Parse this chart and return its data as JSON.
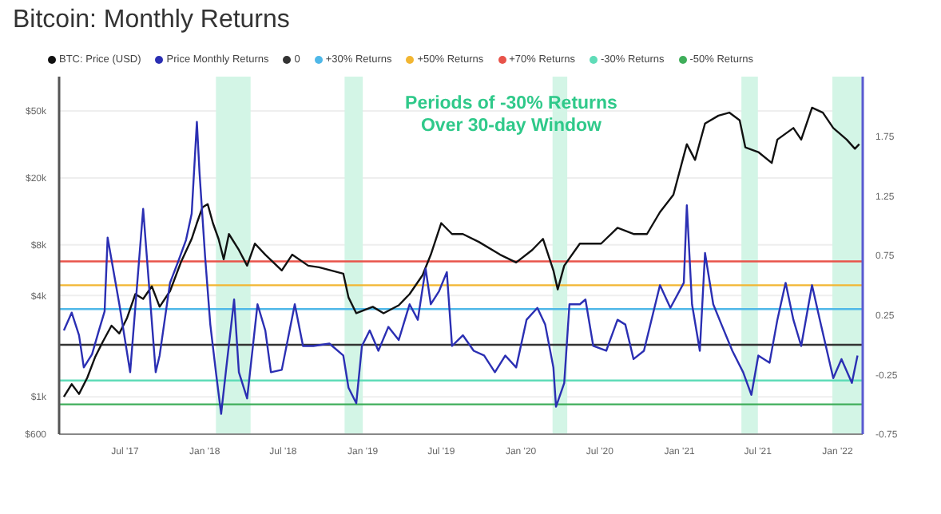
{
  "chart_data": {
    "type": "line",
    "title": "Bitcoin: Monthly Returns",
    "annotations": [
      "Periods of -30% Returns Over 30-day Window"
    ],
    "xlim": [
      "2017-01-30",
      "2022-02-28"
    ],
    "xticks": [
      {
        "value": "2017-07-01",
        "label": "Jul '17"
      },
      {
        "value": "2018-01-01",
        "label": "Jan '18"
      },
      {
        "value": "2018-07-01",
        "label": "Jul '18"
      },
      {
        "value": "2019-01-01",
        "label": "Jan '19"
      },
      {
        "value": "2019-07-01",
        "label": "Jul '19"
      },
      {
        "value": "2020-01-01",
        "label": "Jan '20"
      },
      {
        "value": "2020-07-01",
        "label": "Jul '20"
      },
      {
        "value": "2021-01-01",
        "label": "Jan '21"
      },
      {
        "value": "2021-07-01",
        "label": "Jul '21"
      },
      {
        "value": "2022-01-01",
        "label": "Jan '22"
      }
    ],
    "ylim": [
      600,
      80000
    ],
    "yticks": [
      {
        "value": 600,
        "label": "$600"
      },
      {
        "value": 1000,
        "label": "$1k"
      },
      {
        "value": 4000,
        "label": "$4k"
      },
      {
        "value": 8000,
        "label": "$8k"
      },
      {
        "value": 20000,
        "label": "$20k"
      },
      {
        "value": 50000,
        "label": "$50k"
      }
    ],
    "y2lim": [
      -0.75,
      2.25
    ],
    "y2ticks": [
      -0.75,
      -0.25,
      0.25,
      0.75,
      1.25,
      1.75
    ],
    "log": "y",
    "grid": "y",
    "legend": "top",
    "marker": "none",
    "line_style": "solid",
    "series": [
      {
        "name": "BTC: Price (USD)",
        "color": "#111111",
        "x": [
          "2017-02-10",
          "2017-02-28",
          "2017-03-17",
          "2017-04-05",
          "2017-04-23",
          "2017-05-11",
          "2017-05-31",
          "2017-06-18",
          "2017-07-06",
          "2017-07-25",
          "2017-08-12",
          "2017-09-01",
          "2017-09-19",
          "2017-10-13",
          "2017-11-07",
          "2017-12-02",
          "2017-12-14",
          "2017-12-27",
          "2018-01-08",
          "2018-01-20",
          "2018-02-02",
          "2018-02-14",
          "2018-02-26",
          "2018-03-21",
          "2018-04-09",
          "2018-04-27",
          "2018-05-21",
          "2018-06-28",
          "2018-07-22",
          "2018-08-28",
          "2018-09-22",
          "2018-11-17",
          "2018-11-29",
          "2018-12-17",
          "2019-01-24",
          "2019-02-18",
          "2019-03-25",
          "2019-04-19",
          "2019-05-19",
          "2019-06-07",
          "2019-07-01",
          "2019-07-26",
          "2019-08-20",
          "2019-09-26",
          "2019-11-14",
          "2019-12-21",
          "2020-01-27",
          "2020-02-21",
          "2020-03-16",
          "2020-03-26",
          "2020-04-10",
          "2020-05-16",
          "2020-07-04",
          "2020-08-11",
          "2020-09-17",
          "2020-10-18",
          "2020-11-17",
          "2020-12-18",
          "2021-01-18",
          "2021-02-06",
          "2021-03-01",
          "2021-04-01",
          "2021-04-26",
          "2021-05-20",
          "2021-06-02",
          "2021-07-02",
          "2021-08-02",
          "2021-08-15",
          "2021-09-21",
          "2021-10-09",
          "2021-11-03",
          "2021-11-28",
          "2021-12-22",
          "2022-01-22",
          "2022-02-10",
          "2022-02-20"
        ],
        "values": [
          1000,
          1190,
          1040,
          1300,
          1720,
          2130,
          2650,
          2380,
          2950,
          4080,
          3820,
          4540,
          3430,
          4250,
          6290,
          8690,
          10780,
          13380,
          13970,
          10780,
          8690,
          6570,
          9280,
          7460,
          6020,
          8140,
          7000,
          5640,
          7000,
          6020,
          5890,
          5400,
          3900,
          3140,
          3430,
          3140,
          3500,
          4080,
          5290,
          7000,
          10780,
          9280,
          9280,
          8330,
          7000,
          6290,
          7460,
          8690,
          5640,
          4350,
          6020,
          8140,
          8140,
          10100,
          9280,
          9280,
          12530,
          15880,
          31750,
          25600,
          42100,
          46900,
          48900,
          44000,
          30400,
          28500,
          24550,
          33800,
          39600,
          33800,
          52300,
          48900,
          39600,
          33800,
          29800,
          31750
        ]
      },
      {
        "name": "Price Monthly Returns",
        "color": "#2b2fb3",
        "axis": "y2",
        "x": [
          "2017-02-10",
          "2017-02-28",
          "2017-03-17",
          "2017-03-28",
          "2017-04-16",
          "2017-05-01",
          "2017-05-15",
          "2017-05-22",
          "2017-06-18",
          "2017-07-13",
          "2017-08-12",
          "2017-09-10",
          "2017-09-19",
          "2017-10-13",
          "2017-11-01",
          "2017-11-19",
          "2017-12-02",
          "2017-12-14",
          "2017-12-20",
          "2018-01-02",
          "2018-01-14",
          "2018-01-27",
          "2018-02-08",
          "2018-02-20",
          "2018-03-10",
          "2018-03-21",
          "2018-04-09",
          "2018-05-03",
          "2018-05-21",
          "2018-06-03",
          "2018-06-28",
          "2018-07-28",
          "2018-08-16",
          "2018-09-09",
          "2018-10-16",
          "2018-11-17",
          "2018-11-29",
          "2018-12-17",
          "2018-12-30",
          "2019-01-17",
          "2019-02-06",
          "2019-03-01",
          "2019-03-25",
          "2019-04-19",
          "2019-05-08",
          "2019-05-26",
          "2019-06-07",
          "2019-06-26",
          "2019-07-14",
          "2019-07-26",
          "2019-08-20",
          "2019-09-14",
          "2019-10-08",
          "2019-11-02",
          "2019-11-26",
          "2019-12-21",
          "2020-01-14",
          "2020-02-08",
          "2020-02-26",
          "2020-03-16",
          "2020-03-22",
          "2020-04-10",
          "2020-04-22",
          "2020-05-16",
          "2020-05-29",
          "2020-06-16",
          "2020-07-16",
          "2020-08-11",
          "2020-08-29",
          "2020-09-17",
          "2020-10-11",
          "2020-11-17",
          "2020-12-11",
          "2021-01-11",
          "2021-01-18",
          "2021-01-30",
          "2021-02-17",
          "2021-03-01",
          "2021-03-20",
          "2021-04-08",
          "2021-05-03",
          "2021-05-28",
          "2021-06-16",
          "2021-07-02",
          "2021-07-28",
          "2021-08-15",
          "2021-09-03",
          "2021-09-21",
          "2021-10-09",
          "2021-11-03",
          "2021-11-21",
          "2021-12-10",
          "2021-12-22",
          "2022-01-10",
          "2022-02-03",
          "2022-02-16"
        ],
        "values": [
          0.12,
          0.27,
          0.08,
          -0.19,
          -0.08,
          0.11,
          0.28,
          0.9,
          0.34,
          -0.23,
          1.14,
          -0.23,
          -0.09,
          0.52,
          0.7,
          0.88,
          1.1,
          1.87,
          1.45,
          0.74,
          0.17,
          -0.23,
          -0.58,
          -0.19,
          0.38,
          -0.23,
          -0.45,
          0.34,
          0.12,
          -0.23,
          -0.21,
          0.34,
          -0.01,
          -0.01,
          0.01,
          -0.09,
          -0.36,
          -0.49,
          -0.01,
          0.12,
          -0.05,
          0.15,
          0.04,
          0.34,
          0.21,
          0.64,
          0.34,
          0.45,
          0.61,
          -0.01,
          0.08,
          -0.05,
          -0.09,
          -0.23,
          -0.09,
          -0.19,
          0.21,
          0.31,
          0.17,
          -0.19,
          -0.52,
          -0.32,
          0.34,
          0.34,
          0.38,
          -0.01,
          -0.05,
          0.21,
          0.17,
          -0.12,
          -0.05,
          0.5,
          0.31,
          0.52,
          1.17,
          0.34,
          -0.05,
          0.77,
          0.34,
          0.17,
          -0.05,
          -0.23,
          -0.42,
          -0.09,
          -0.15,
          0.21,
          0.52,
          0.21,
          -0.01,
          0.5,
          0.21,
          -0.09,
          -0.28,
          -0.12,
          -0.32,
          -0.09
        ]
      }
    ],
    "ref_lines": [
      {
        "axis": "y2",
        "value": 0,
        "label": "0",
        "color": "#333333"
      },
      {
        "axis": "y2",
        "value": 0.3,
        "label": "+30% Returns",
        "color": "#4fb8e8"
      },
      {
        "axis": "y2",
        "value": 0.5,
        "label": "+50% Returns",
        "color": "#f2b632"
      },
      {
        "axis": "y2",
        "value": 0.7,
        "label": "+70% Returns",
        "color": "#e8534a"
      },
      {
        "axis": "y2",
        "value": -0.3,
        "label": "-30% Returns",
        "color": "#5fdcb8"
      },
      {
        "axis": "y2",
        "value": -0.5,
        "label": "-50% Returns",
        "color": "#3fae5a"
      }
    ],
    "bands": [
      {
        "axis": "x",
        "from": "2018-01-27",
        "to": "2018-04-17",
        "color": "#d3f5e6"
      },
      {
        "axis": "x",
        "from": "2018-11-20",
        "to": "2019-01-01",
        "color": "#d3f5e6"
      },
      {
        "axis": "x",
        "from": "2020-03-14",
        "to": "2020-04-17",
        "color": "#d3f5e6"
      },
      {
        "axis": "x",
        "from": "2021-05-24",
        "to": "2021-07-01",
        "color": "#d3f5e6"
      },
      {
        "axis": "x",
        "from": "2021-12-20",
        "to": "2022-02-28",
        "color": "#d3f5e6"
      }
    ]
  }
}
